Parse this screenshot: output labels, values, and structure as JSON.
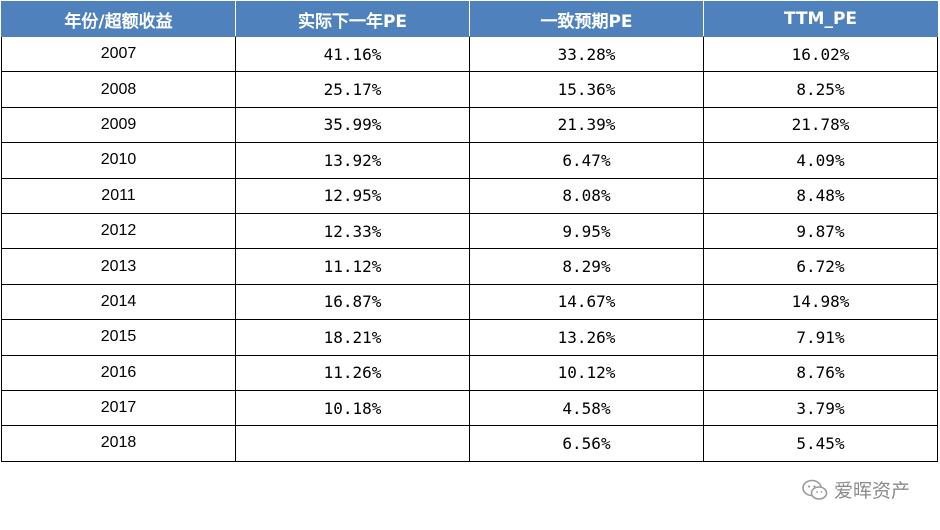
{
  "table": {
    "headers": [
      "年份/超额收益",
      "实际下一年PE",
      "一致预期PE",
      "TTM_PE"
    ],
    "rows": [
      [
        "2007",
        "41.16%",
        "33.28%",
        "16.02%"
      ],
      [
        "2008",
        "25.17%",
        "15.36%",
        "8.25%"
      ],
      [
        "2009",
        "35.99%",
        "21.39%",
        "21.78%"
      ],
      [
        "2010",
        "13.92%",
        "6.47%",
        "4.09%"
      ],
      [
        "2011",
        "12.95%",
        "8.08%",
        "8.48%"
      ],
      [
        "2012",
        "12.33%",
        "9.95%",
        "9.87%"
      ],
      [
        "2013",
        "11.12%",
        "8.29%",
        "6.72%"
      ],
      [
        "2014",
        "16.87%",
        "14.67%",
        "14.98%"
      ],
      [
        "2015",
        "18.21%",
        "13.26%",
        "7.91%"
      ],
      [
        "2016",
        "11.26%",
        "10.12%",
        "8.76%"
      ],
      [
        "2017",
        "10.18%",
        "4.58%",
        "3.79%"
      ],
      [
        "2018",
        "",
        "6.56%",
        "5.45%"
      ]
    ]
  },
  "watermark": {
    "text": "爱晖资产",
    "icon": "wechat-icon"
  },
  "colors": {
    "header_bg": "#4f81bd",
    "header_text": "#ffffff",
    "watermark": "#8a8a8a"
  }
}
